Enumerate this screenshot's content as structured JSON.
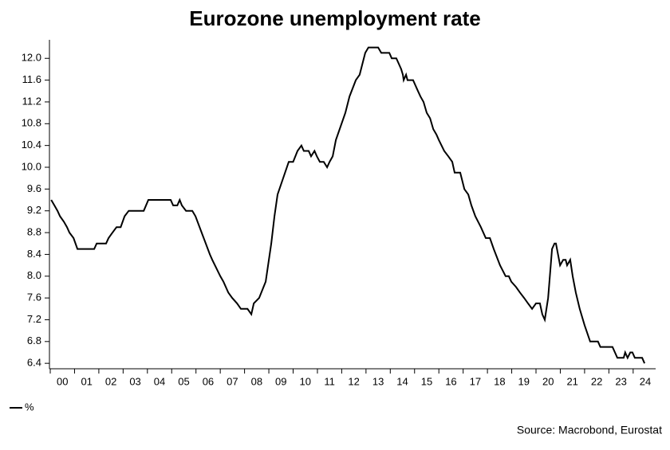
{
  "chart_data": {
    "type": "line",
    "title": "Eurozone unemployment rate",
    "source": "Source: Macrobond, Eurostat",
    "xlim": [
      2000,
      2024.86
    ],
    "ylim": [
      6.3,
      12.34
    ],
    "xticks": [
      {
        "value": 2000,
        "label": "00"
      },
      {
        "value": 2001,
        "label": "01"
      },
      {
        "value": 2002,
        "label": "02"
      },
      {
        "value": 2003,
        "label": "03"
      },
      {
        "value": 2004,
        "label": "04"
      },
      {
        "value": 2005,
        "label": "05"
      },
      {
        "value": 2006,
        "label": "06"
      },
      {
        "value": 2007,
        "label": "07"
      },
      {
        "value": 2008,
        "label": "08"
      },
      {
        "value": 2009,
        "label": "09"
      },
      {
        "value": 2010,
        "label": "10"
      },
      {
        "value": 2011,
        "label": "11"
      },
      {
        "value": 2012,
        "label": "12"
      },
      {
        "value": 2013,
        "label": "13"
      },
      {
        "value": 2014,
        "label": "14"
      },
      {
        "value": 2015,
        "label": "15"
      },
      {
        "value": 2016,
        "label": "16"
      },
      {
        "value": 2017,
        "label": "17"
      },
      {
        "value": 2018,
        "label": "18"
      },
      {
        "value": 2019,
        "label": "19"
      },
      {
        "value": 2020,
        "label": "20"
      },
      {
        "value": 2021,
        "label": "21"
      },
      {
        "value": 2022,
        "label": "22"
      },
      {
        "value": 2023,
        "label": "23"
      },
      {
        "value": 2024,
        "label": "24"
      }
    ],
    "yticks": [
      6.4,
      6.8,
      7.2,
      7.6,
      {
        "value": 8,
        "label": "8.0"
      },
      8.4,
      8.8,
      9.2,
      9.6,
      {
        "value": 10,
        "label": "10.0"
      },
      10.4,
      10.8,
      11.2,
      11.6,
      {
        "value": 12,
        "label": "12.0"
      }
    ],
    "x": [
      2000.04,
      2000.17,
      2000.3,
      2000.4,
      2000.56,
      2000.69,
      2000.79,
      2000.96,
      2001.12,
      2001.81,
      2001.91,
      2002.3,
      2002.4,
      2002.56,
      2002.73,
      2002.9,
      2003.06,
      2003.23,
      2003.85,
      2004.04,
      2004.96,
      2005.06,
      2005.23,
      2005.33,
      2005.42,
      2005.59,
      2005.85,
      2005.98,
      2006.57,
      2006.67,
      2007.0,
      2007.13,
      2007.33,
      2007.49,
      2007.69,
      2007.85,
      2008.12,
      2008.28,
      2008.38,
      2008.6,
      2008.87,
      2009.1,
      2009.23,
      2009.36,
      2009.82,
      2010.0,
      2010.18,
      2010.34,
      2010.44,
      2010.64,
      2010.74,
      2010.88,
      2010.98,
      2011.1,
      2011.26,
      2011.4,
      2011.5,
      2011.63,
      2011.76,
      2012.15,
      2012.32,
      2012.58,
      2012.74,
      2012.97,
      2013.1,
      2013.5,
      2013.63,
      2013.96,
      2014.06,
      2014.25,
      2014.35,
      2014.45,
      2014.52,
      2014.55,
      2014.65,
      2014.71,
      2014.94,
      2015.14,
      2015.24,
      2015.37,
      2015.5,
      2015.64,
      2015.77,
      2015.9,
      2016.0,
      2016.22,
      2016.39,
      2016.55,
      2016.65,
      2016.88,
      2017.05,
      2017.21,
      2017.34,
      2017.5,
      2017.73,
      2017.93,
      2018.1,
      2018.26,
      2018.52,
      2018.75,
      2018.88,
      2018.98,
      2019.18,
      2019.34,
      2019.51,
      2019.67,
      2019.84,
      2020.0,
      2020.16,
      2020.26,
      2020.36,
      2020.5,
      2020.66,
      2020.76,
      2020.82,
      2020.99,
      2021.12,
      2021.22,
      2021.28,
      2021.41,
      2021.51,
      2021.64,
      2021.8,
      2022.0,
      2022.23,
      2022.55,
      2022.65,
      2023.15,
      2023.35,
      2023.61,
      2023.67,
      2023.77,
      2023.88,
      2023.97,
      2024.07,
      2024.37,
      2024.47
    ],
    "series": [
      {
        "name": "%",
        "color": "#000000",
        "values": [
          9.4,
          9.3,
          9.2,
          9.1,
          9.0,
          8.9,
          8.8,
          8.7,
          8.5,
          8.5,
          8.6,
          8.6,
          8.7,
          8.8,
          8.9,
          8.9,
          9.1,
          9.2,
          9.2,
          9.4,
          9.4,
          9.3,
          9.3,
          9.4,
          9.3,
          9.2,
          9.2,
          9.1,
          8.4,
          8.3,
          8.0,
          7.9,
          7.7,
          7.6,
          7.5,
          7.4,
          7.4,
          7.3,
          7.5,
          7.6,
          7.9,
          8.6,
          9.1,
          9.5,
          10.1,
          10.1,
          10.3,
          10.4,
          10.3,
          10.3,
          10.2,
          10.3,
          10.2,
          10.1,
          10.1,
          10.0,
          10.1,
          10.2,
          10.5,
          11.0,
          11.3,
          11.6,
          11.7,
          12.1,
          12.2,
          12.2,
          12.1,
          12.1,
          12.0,
          12.0,
          11.9,
          11.8,
          11.7,
          11.6,
          11.7,
          11.6,
          11.6,
          11.4,
          11.3,
          11.2,
          11.0,
          10.9,
          10.7,
          10.6,
          10.5,
          10.3,
          10.2,
          10.1,
          9.9,
          9.9,
          9.6,
          9.5,
          9.3,
          9.1,
          8.9,
          8.7,
          8.7,
          8.5,
          8.2,
          8.0,
          8.0,
          7.9,
          7.8,
          7.7,
          7.6,
          7.5,
          7.4,
          7.5,
          7.5,
          7.3,
          7.2,
          7.6,
          8.5,
          8.6,
          8.6,
          8.2,
          8.3,
          8.3,
          8.2,
          8.3,
          8.0,
          7.7,
          7.4,
          7.1,
          6.8,
          6.8,
          6.7,
          6.7,
          6.5,
          6.5,
          6.6,
          6.5,
          6.6,
          6.6,
          6.5,
          6.5,
          6.4
        ]
      }
    ]
  }
}
